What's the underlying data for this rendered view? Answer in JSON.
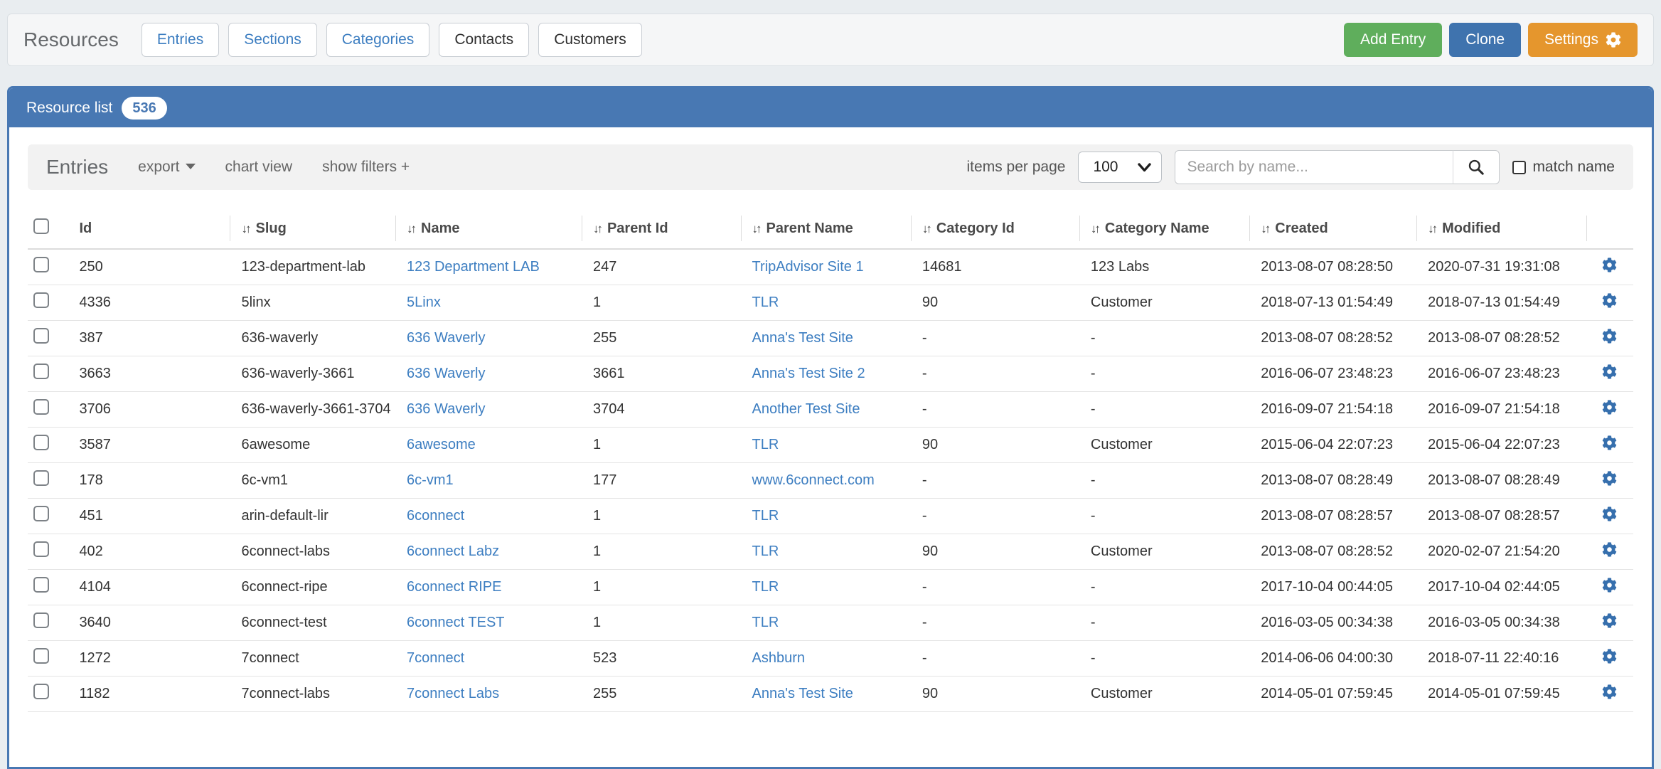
{
  "header": {
    "title": "Resources",
    "tabs": [
      {
        "label": "Entries",
        "style": "link"
      },
      {
        "label": "Sections",
        "style": "link"
      },
      {
        "label": "Categories",
        "style": "link"
      },
      {
        "label": "Contacts",
        "style": "plain"
      },
      {
        "label": "Customers",
        "style": "plain"
      }
    ],
    "actions": [
      {
        "name": "add-entry",
        "label": "Add Entry",
        "color": "#5fae5c"
      },
      {
        "name": "clone",
        "label": "Clone",
        "color": "#3f73ae"
      },
      {
        "name": "settings",
        "label": "Settings",
        "color": "#e5962d",
        "icon": "gear-icon"
      }
    ]
  },
  "panel": {
    "title": "Resource list",
    "count": "536",
    "accent_color": "#4878b3"
  },
  "toolbar": {
    "heading": "Entries",
    "links": [
      {
        "label": "export",
        "caret": true
      },
      {
        "label": "chart view"
      },
      {
        "label": "show filters +"
      }
    ],
    "items_per_page_label": "items per page",
    "items_per_page_value": "100",
    "search_placeholder": "Search by name...",
    "search_icon": "magnifier-icon",
    "match_name_label": "match name"
  },
  "table": {
    "sort_icon": "↓↑",
    "row_action_icon": "gear-icon",
    "link_color": "#3d7ec1",
    "columns": [
      {
        "label": "Id",
        "sortable": false
      },
      {
        "label": "Slug",
        "sortable": true
      },
      {
        "label": "Name",
        "sortable": true
      },
      {
        "label": "Parent Id",
        "sortable": true
      },
      {
        "label": "Parent Name",
        "sortable": true
      },
      {
        "label": "Category Id",
        "sortable": true
      },
      {
        "label": "Category Name",
        "sortable": true
      },
      {
        "label": "Created",
        "sortable": true
      },
      {
        "label": "Modified",
        "sortable": true
      }
    ],
    "link_columns": [
      2,
      4
    ],
    "rows": [
      [
        "250",
        "123-department-lab",
        "123 Department LAB",
        "247",
        "TripAdvisor Site 1",
        "14681",
        "123 Labs",
        "2013-08-07 08:28:50",
        "2020-07-31 19:31:08"
      ],
      [
        "4336",
        "5linx",
        "5Linx",
        "1",
        "TLR",
        "90",
        "Customer",
        "2018-07-13 01:54:49",
        "2018-07-13 01:54:49"
      ],
      [
        "387",
        "636-waverly",
        "636 Waverly",
        "255",
        "Anna's Test Site",
        "-",
        "-",
        "2013-08-07 08:28:52",
        "2013-08-07 08:28:52"
      ],
      [
        "3663",
        "636-waverly-3661",
        "636 Waverly",
        "3661",
        "Anna's Test Site 2",
        "-",
        "-",
        "2016-06-07 23:48:23",
        "2016-06-07 23:48:23"
      ],
      [
        "3706",
        "636-waverly-3661-3704",
        "636 Waverly",
        "3704",
        "Another Test Site",
        "-",
        "-",
        "2016-09-07 21:54:18",
        "2016-09-07 21:54:18"
      ],
      [
        "3587",
        "6awesome",
        "6awesome",
        "1",
        "TLR",
        "90",
        "Customer",
        "2015-06-04 22:07:23",
        "2015-06-04 22:07:23"
      ],
      [
        "178",
        "6c-vm1",
        "6c-vm1",
        "177",
        "www.6connect.com",
        "-",
        "-",
        "2013-08-07 08:28:49",
        "2013-08-07 08:28:49"
      ],
      [
        "451",
        "arin-default-lir",
        "6connect",
        "1",
        "TLR",
        "-",
        "-",
        "2013-08-07 08:28:57",
        "2013-08-07 08:28:57"
      ],
      [
        "402",
        "6connect-labs",
        "6connect Labz",
        "1",
        "TLR",
        "90",
        "Customer",
        "2013-08-07 08:28:52",
        "2020-02-07 21:54:20"
      ],
      [
        "4104",
        "6connect-ripe",
        "6connect RIPE",
        "1",
        "TLR",
        "-",
        "-",
        "2017-10-04 00:44:05",
        "2017-10-04 02:44:05"
      ],
      [
        "3640",
        "6connect-test",
        "6connect TEST",
        "1",
        "TLR",
        "-",
        "-",
        "2016-03-05 00:34:38",
        "2016-03-05 00:34:38"
      ],
      [
        "1272",
        "7connect",
        "7connect",
        "523",
        "Ashburn",
        "-",
        "-",
        "2014-06-06 04:00:30",
        "2018-07-11 22:40:16"
      ],
      [
        "1182",
        "7connect-labs",
        "7connect Labs",
        "255",
        "Anna's Test Site",
        "90",
        "Customer",
        "2014-05-01 07:59:45",
        "2014-05-01 07:59:45"
      ]
    ]
  }
}
